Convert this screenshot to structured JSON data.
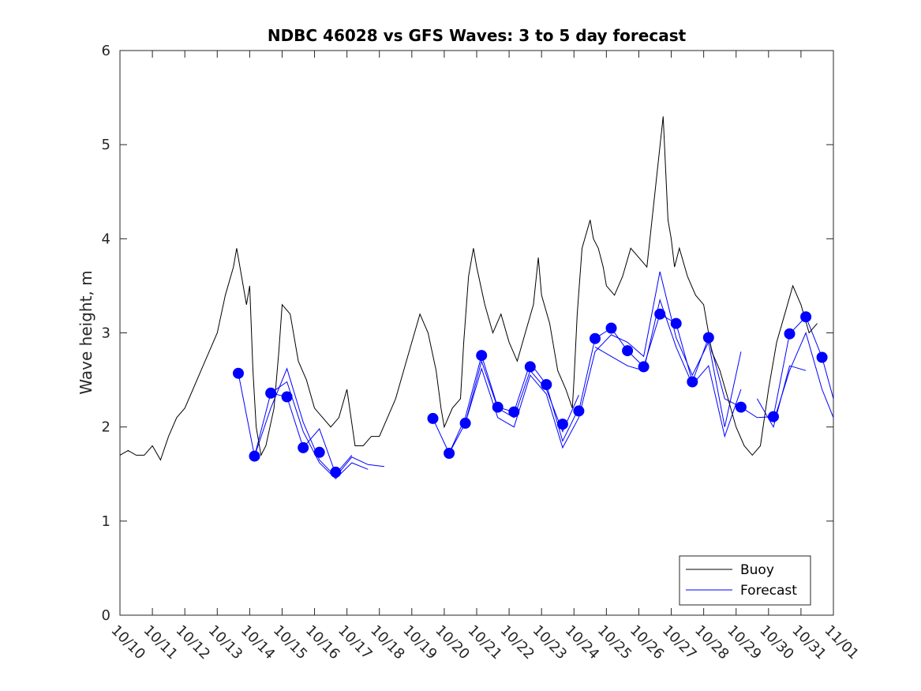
{
  "chart_data": {
    "type": "line",
    "title": "NDBC 46028 vs GFS Waves: 3 to 5 day forecast",
    "xlabel": "",
    "ylabel": "Wave height, m",
    "ylim": [
      0,
      6
    ],
    "yticks": [
      "0",
      "1",
      "2",
      "3",
      "4",
      "5",
      "6"
    ],
    "xlim": [
      0,
      22
    ],
    "xtick_labels": [
      "10/10",
      "10/11",
      "10/12",
      "10/13",
      "10/14",
      "10/15",
      "10/16",
      "10/17",
      "10/18",
      "10/19",
      "10/20",
      "10/21",
      "10/22",
      "10/23",
      "10/24",
      "10/25",
      "10/26",
      "10/27",
      "10/28",
      "10/29",
      "10/30",
      "10/31",
      "11/01"
    ],
    "legend": {
      "position": "bottom-right",
      "entries": [
        "Buoy",
        "Forecast"
      ]
    },
    "colors": {
      "buoy": "#000000",
      "forecast": "#0000ff",
      "axis": "#262626"
    },
    "buoy": {
      "name": "Buoy",
      "x": [
        0,
        0.25,
        0.5,
        0.75,
        1.0,
        1.25,
        1.5,
        1.75,
        2.0,
        2.25,
        2.5,
        2.75,
        3.0,
        3.25,
        3.5,
        3.6,
        3.75,
        3.9,
        4.0,
        4.1,
        4.2,
        4.35,
        4.5,
        4.75,
        4.9,
        5.0,
        5.25,
        5.5,
        5.75,
        6.0,
        6.25,
        6.5,
        6.75,
        7.0,
        7.25,
        7.5,
        7.75,
        8.0,
        8.25,
        8.5,
        8.75,
        9.0,
        9.25,
        9.5,
        9.75,
        9.9,
        10.0,
        10.25,
        10.5,
        10.6,
        10.75,
        10.9,
        11.0,
        11.25,
        11.5,
        11.75,
        12.0,
        12.25,
        12.5,
        12.75,
        12.9,
        13.0,
        13.25,
        13.5,
        13.75,
        13.95,
        14.0,
        14.1,
        14.25,
        14.5,
        14.6,
        14.75,
        14.9,
        15.0,
        15.25,
        15.5,
        15.75,
        16.0,
        16.25,
        16.5,
        16.75,
        16.9,
        17.0,
        17.1,
        17.25,
        17.5,
        17.75,
        18.0,
        18.25,
        18.5,
        18.75,
        19.0,
        19.25,
        19.5,
        19.75,
        20.0,
        20.25,
        20.5,
        20.75,
        21.0,
        21.25,
        21.5
      ],
      "y": [
        1.7,
        1.75,
        1.7,
        1.7,
        1.8,
        1.65,
        1.9,
        2.1,
        2.2,
        2.4,
        2.6,
        2.8,
        3.0,
        3.4,
        3.7,
        3.9,
        3.6,
        3.3,
        3.5,
        2.6,
        2.0,
        1.7,
        1.8,
        2.2,
        2.8,
        3.3,
        3.2,
        2.7,
        2.5,
        2.2,
        2.1,
        2.0,
        2.1,
        2.4,
        1.8,
        1.8,
        1.9,
        1.9,
        2.1,
        2.3,
        2.6,
        2.9,
        3.2,
        3.0,
        2.6,
        2.2,
        2.0,
        2.2,
        2.3,
        2.9,
        3.6,
        3.9,
        3.7,
        3.3,
        3.0,
        3.2,
        2.9,
        2.7,
        3.0,
        3.3,
        3.8,
        3.4,
        3.1,
        2.6,
        2.4,
        2.2,
        2.5,
        3.2,
        3.9,
        4.2,
        4.0,
        3.9,
        3.7,
        3.5,
        3.4,
        3.6,
        3.9,
        3.8,
        3.7,
        4.5,
        5.3,
        4.2,
        4.0,
        3.7,
        3.9,
        3.6,
        3.4,
        3.3,
        2.8,
        2.6,
        2.3,
        2.0,
        1.8,
        1.7,
        1.8,
        2.4,
        2.9,
        3.2,
        3.5,
        3.3,
        3.0,
        3.1
      ]
    },
    "forecast_dots": {
      "name": "Forecast",
      "x": [
        3.65,
        4.15,
        4.65,
        5.15,
        5.65,
        6.15,
        6.65,
        9.65,
        10.15,
        10.65,
        11.15,
        11.65,
        12.15,
        12.65,
        13.15,
        13.65,
        14.15,
        14.65,
        15.15,
        15.65,
        16.15,
        16.65,
        17.15,
        17.65,
        18.15,
        19.15,
        20.15,
        20.65,
        21.15,
        21.65
      ],
      "y": [
        2.57,
        1.69,
        2.36,
        2.32,
        1.78,
        1.73,
        1.52,
        2.09,
        1.72,
        2.04,
        2.76,
        2.21,
        2.16,
        2.64,
        2.45,
        2.03,
        2.17,
        2.94,
        3.05,
        2.81,
        2.64,
        3.2,
        3.1,
        2.48,
        2.95,
        2.21,
        2.11,
        2.99,
        3.17,
        2.74
      ]
    },
    "forecast_runs": [
      {
        "x": [
          3.65,
          4.15,
          4.65,
          5.15,
          5.65,
          6.15,
          6.65,
          7.15,
          7.65,
          8.15
        ],
        "y": [
          2.57,
          1.69,
          2.2,
          2.62,
          2.05,
          1.65,
          1.47,
          1.68,
          1.6,
          1.58
        ]
      },
      {
        "x": [
          4.15,
          4.65,
          5.15,
          5.65,
          6.15,
          6.65,
          7.15,
          7.65
        ],
        "y": [
          1.69,
          2.36,
          2.48,
          1.95,
          1.62,
          1.45,
          1.62,
          1.55
        ]
      },
      {
        "x": [
          4.65,
          5.15,
          5.65,
          6.15,
          6.65,
          7.15
        ],
        "y": [
          2.36,
          2.32,
          1.78,
          1.98,
          1.5,
          1.7
        ]
      },
      {
        "x": [
          9.65,
          10.15,
          10.65,
          11.15,
          11.65,
          12.15,
          12.65,
          13.15,
          13.65,
          14.15
        ],
        "y": [
          2.09,
          1.72,
          2.04,
          2.7,
          2.2,
          2.1,
          2.6,
          2.4,
          1.95,
          2.34
        ]
      },
      {
        "x": [
          10.15,
          10.65,
          11.15,
          11.65,
          12.15,
          12.65,
          13.15,
          13.65,
          14.15
        ],
        "y": [
          1.72,
          2.1,
          2.76,
          2.21,
          2.16,
          2.68,
          2.45,
          1.85,
          2.2
        ]
      },
      {
        "x": [
          10.65,
          11.15,
          11.65,
          12.15,
          12.65,
          13.15,
          13.65,
          14.15
        ],
        "y": [
          2.04,
          2.62,
          2.1,
          2.0,
          2.55,
          2.35,
          1.78,
          2.1
        ]
      },
      {
        "x": [
          14.15,
          14.65,
          15.15,
          15.65,
          16.15,
          16.65,
          17.15,
          17.65,
          18.15,
          18.65,
          19.15,
          19.65,
          20.15,
          20.65,
          21.15,
          21.65,
          22.0
        ],
        "y": [
          2.17,
          2.94,
          3.05,
          2.81,
          2.64,
          3.2,
          3.1,
          2.48,
          2.95,
          2.3,
          2.21,
          2.1,
          2.11,
          2.99,
          3.17,
          2.74,
          2.3
        ]
      },
      {
        "x": [
          14.15,
          14.65,
          15.15,
          15.65,
          16.15,
          16.65,
          17.15,
          17.65,
          18.15,
          18.65,
          19.15
        ],
        "y": [
          2.1,
          2.8,
          2.98,
          2.9,
          2.75,
          3.65,
          2.95,
          2.55,
          2.9,
          2.0,
          2.8
        ]
      },
      {
        "x": [
          14.65,
          15.15,
          15.65,
          16.15,
          16.65,
          17.15,
          17.65,
          18.15,
          18.65,
          19.15
        ],
        "y": [
          2.85,
          2.75,
          2.65,
          2.6,
          3.35,
          2.85,
          2.45,
          2.65,
          1.9,
          2.4
        ]
      },
      {
        "x": [
          20.15,
          20.65,
          21.15,
          21.65,
          22.0
        ],
        "y": [
          2.05,
          2.6,
          3.0,
          2.4,
          2.1
        ]
      },
      {
        "x": [
          19.65,
          20.15,
          20.65,
          21.15
        ],
        "y": [
          2.3,
          2.0,
          2.65,
          2.6
        ]
      }
    ]
  }
}
